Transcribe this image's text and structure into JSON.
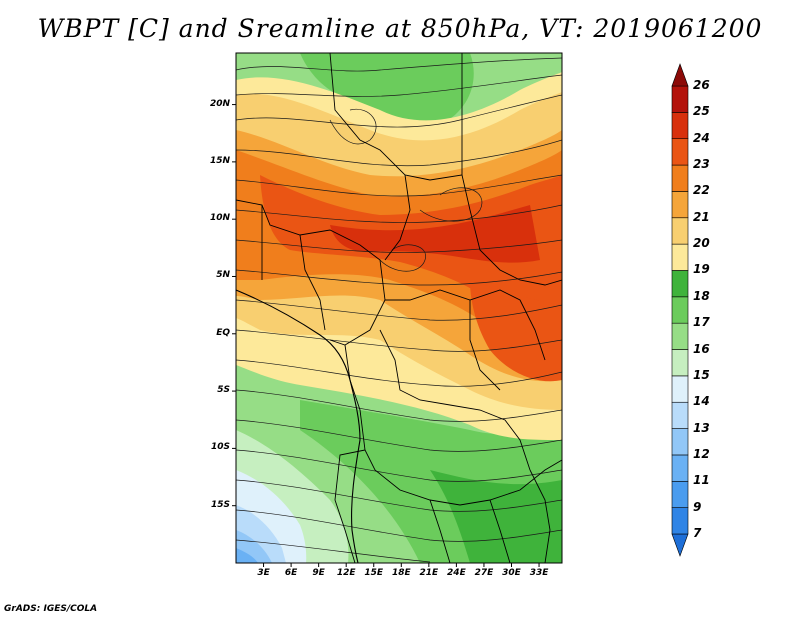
{
  "title": "WBPT [C] and Sreamline at 850hPa, VT: 2019061200",
  "credit": "GrADS: IGES/COLA",
  "map": {
    "extent": {
      "lon_min": 0,
      "lon_max": 35.5,
      "lat_min": -20,
      "lat_max": 24.5
    },
    "lat_ticks": [
      {
        "value": 20,
        "label": "20N"
      },
      {
        "value": 15,
        "label": "15N"
      },
      {
        "value": 10,
        "label": "10N"
      },
      {
        "value": 5,
        "label": "5N"
      },
      {
        "value": 0,
        "label": "EQ"
      },
      {
        "value": -5,
        "label": "5S"
      },
      {
        "value": -10,
        "label": "10S"
      },
      {
        "value": -15,
        "label": "15S"
      }
    ],
    "lon_ticks": [
      {
        "value": 3,
        "label": "3E"
      },
      {
        "value": 6,
        "label": "6E"
      },
      {
        "value": 9,
        "label": "9E"
      },
      {
        "value": 12,
        "label": "12E"
      },
      {
        "value": 15,
        "label": "15E"
      },
      {
        "value": 18,
        "label": "18E"
      },
      {
        "value": 21,
        "label": "21E"
      },
      {
        "value": 24,
        "label": "24E"
      },
      {
        "value": 27,
        "label": "27E"
      },
      {
        "value": 30,
        "label": "30E"
      },
      {
        "value": 33,
        "label": "33E"
      }
    ]
  },
  "colorbar": {
    "levels": [
      "7",
      "9",
      "11",
      "12",
      "13",
      "14",
      "15",
      "16",
      "17",
      "18",
      "19",
      "20",
      "21",
      "22",
      "23",
      "24",
      "25",
      "26"
    ],
    "colors": [
      "#1e6fd8",
      "#2f84e6",
      "#4a9cef",
      "#6ab1f4",
      "#92c7f7",
      "#b9dcfa",
      "#dff1fb",
      "#c6efc0",
      "#96dd86",
      "#6bcc5c",
      "#3fb33b",
      "#fde99a",
      "#f8cf70",
      "#f5a53a",
      "#f07e1c",
      "#ea5514",
      "#d8300c",
      "#b3120b",
      "#8c0a08"
    ]
  }
}
